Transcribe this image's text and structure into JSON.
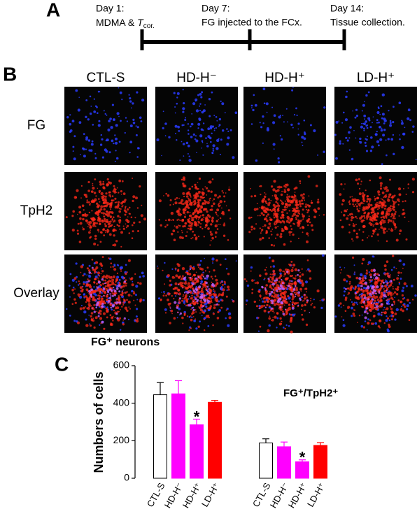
{
  "panel_a": {
    "letter": "A",
    "day1_title": "Day 1:",
    "day1_text": "MDMA &",
    "tcor": "T",
    "tcor_sub": "cor.",
    "day7_title": "Day 7:",
    "day7_text": "FG injected to the FCx.",
    "day14_title": "Day 14:",
    "day14_text": "Tissue collection."
  },
  "panel_b": {
    "letter": "B",
    "columns": [
      "CTL-S",
      "HD-H⁻",
      "HD-H⁺",
      "LD-H⁺"
    ],
    "rows": [
      "FG",
      "TpH2",
      "Overlay"
    ],
    "caption": "FG⁺ neurons"
  },
  "chart_data": {
    "type": "bar",
    "letter": "C",
    "ylabel": "Numbers of cells",
    "annotation": "FG⁺/TpH2⁺",
    "categories": [
      "CTL-S",
      "HD-H⁻",
      "HD-H⁺",
      "LD-H⁺",
      "CTL-S",
      "HD-H⁻",
      "HD-H⁺",
      "LD-H⁺"
    ],
    "values": [
      445,
      450,
      285,
      405,
      188,
      168,
      88,
      175
    ],
    "errors": [
      65,
      70,
      30,
      10,
      22,
      25,
      10,
      15
    ],
    "colors": [
      "#ffffff",
      "#ff00ff",
      "#ff00ff",
      "#ff0000",
      "#ffffff",
      "#ff00ff",
      "#ff00ff",
      "#ff0000"
    ],
    "significance": [
      null,
      null,
      "*",
      null,
      null,
      null,
      "*",
      null
    ],
    "ylim": [
      0,
      600
    ],
    "yticks": [
      0,
      200,
      400,
      600
    ]
  }
}
